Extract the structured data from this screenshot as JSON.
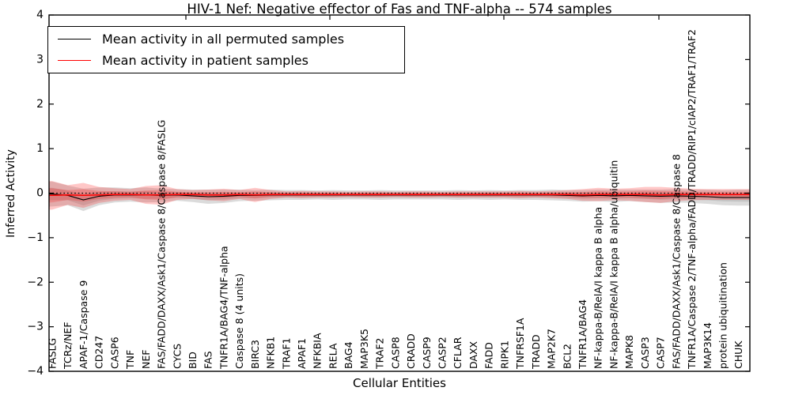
{
  "figure": {
    "title": "HIV-1 Nef: Negative effector of Fas and TNF-alpha -- 574 samples",
    "xlabel": "Cellular Entities",
    "ylabel": "Inferred Activity"
  },
  "legend": {
    "items": [
      {
        "label": "Mean activity in all permuted samples",
        "color": "#000000"
      },
      {
        "label": "Mean activity in patient samples",
        "color": "#ff0000"
      }
    ]
  },
  "chart_data": {
    "type": "line",
    "title": "HIV-1 Nef: Negative effector of Fas and TNF-alpha -- 574 samples",
    "xlabel": "Cellular Entities",
    "ylabel": "Inferred Activity",
    "ylim": [
      -4,
      4
    ],
    "ytick_labels": [
      "−4",
      "−3",
      "−2",
      "−1",
      "0",
      "1",
      "2",
      "3",
      "4"
    ],
    "yticks": [
      -4,
      -3,
      -2,
      -1,
      0,
      1,
      2,
      3,
      4
    ],
    "grid": false,
    "legend_position": "upper left",
    "x_tick_label_rotation": 90,
    "reference_line": {
      "y": 0,
      "style": "dotted",
      "color": "#000000"
    },
    "categories": [
      "FASLG",
      "TCRz/NEF",
      "APAF-1/Caspase 9",
      "CD247",
      "CASP6",
      "TNF",
      "NEF",
      "FAS/FADD/DAXX/Ask1/Caspase 8/Caspase 8/FASLG",
      "CYCS",
      "BID",
      "FAS",
      "TNFR1A/BAG4/TNF-alpha",
      "Caspase 8 (4 units)",
      "BIRC3",
      "NFKB1",
      "TRAF1",
      "APAF1",
      "NFKBIA",
      "RELA",
      "BAG4",
      "MAP3K5",
      "TRAF2",
      "CASP8",
      "CRADD",
      "CASP9",
      "CASP2",
      "CFLAR",
      "DAXX",
      "FADD",
      "RIPK1",
      "TNFRSF1A",
      "TRADD",
      "MAP2K7",
      "BCL2",
      "TNFR1A/BAG4",
      "NF-kappa-B/RelA/I kappa B alpha",
      "NF-kappa-B/RelA/I kappa B alpha/ubiquitin",
      "MAPK8",
      "CASP3",
      "CASP7",
      "FAS/FADD/DAXX/Ask1/Caspase 8/Caspase 8",
      "TNFR1A/Caspase 2/TNF-alpha/FADD/TRADD/RIP1/cIAP2/TRAF1/TRAF2",
      "MAP3K14",
      "protein ubiquitination",
      "CHUK"
    ],
    "series": [
      {
        "name": "Mean activity in all permuted samples",
        "color": "#000000",
        "band_color": "#888888",
        "band_alpha": 0.3,
        "values": [
          -0.02,
          -0.05,
          -0.15,
          -0.07,
          -0.04,
          -0.04,
          -0.04,
          -0.05,
          -0.04,
          -0.06,
          -0.08,
          -0.07,
          -0.05,
          -0.05,
          -0.04,
          -0.04,
          -0.04,
          -0.04,
          -0.04,
          -0.04,
          -0.04,
          -0.04,
          -0.04,
          -0.04,
          -0.04,
          -0.04,
          -0.04,
          -0.04,
          -0.04,
          -0.04,
          -0.04,
          -0.04,
          -0.04,
          -0.05,
          -0.06,
          -0.05,
          -0.06,
          -0.05,
          -0.06,
          -0.07,
          -0.06,
          -0.07,
          -0.08,
          -0.1,
          -0.1
        ],
        "band_halfwidth": [
          0.28,
          0.22,
          0.25,
          0.2,
          0.17,
          0.15,
          0.17,
          0.15,
          0.13,
          0.14,
          0.16,
          0.15,
          0.13,
          0.12,
          0.12,
          0.11,
          0.11,
          0.1,
          0.11,
          0.1,
          0.1,
          0.11,
          0.1,
          0.1,
          0.1,
          0.1,
          0.11,
          0.1,
          0.11,
          0.1,
          0.11,
          0.11,
          0.12,
          0.12,
          0.13,
          0.13,
          0.14,
          0.13,
          0.14,
          0.15,
          0.15,
          0.15,
          0.16,
          0.17,
          0.18
        ]
      },
      {
        "name": "Mean activity in patient samples",
        "color": "#ff0000",
        "band_color": "#ff0000",
        "band_alpha": 0.22,
        "values": [
          -0.05,
          -0.04,
          -0.05,
          -0.04,
          -0.03,
          -0.03,
          -0.04,
          -0.04,
          -0.03,
          -0.03,
          -0.04,
          -0.04,
          -0.03,
          -0.04,
          -0.03,
          -0.03,
          -0.03,
          -0.03,
          -0.03,
          -0.03,
          -0.03,
          -0.03,
          -0.03,
          -0.03,
          -0.03,
          -0.03,
          -0.03,
          -0.03,
          -0.03,
          -0.03,
          -0.03,
          -0.03,
          -0.03,
          -0.03,
          -0.04,
          -0.03,
          -0.03,
          -0.03,
          -0.03,
          -0.04,
          -0.03,
          -0.03,
          -0.03,
          -0.03,
          -0.03
        ],
        "band_halfwidth": [
          0.32,
          0.22,
          0.28,
          0.18,
          0.14,
          0.12,
          0.2,
          0.22,
          0.12,
          0.1,
          0.12,
          0.14,
          0.1,
          0.16,
          0.1,
          0.07,
          0.08,
          0.07,
          0.07,
          0.06,
          0.07,
          0.07,
          0.06,
          0.07,
          0.07,
          0.06,
          0.07,
          0.07,
          0.07,
          0.07,
          0.08,
          0.07,
          0.08,
          0.1,
          0.13,
          0.15,
          0.13,
          0.14,
          0.17,
          0.18,
          0.15,
          0.13,
          0.12,
          0.12,
          0.12
        ]
      }
    ]
  }
}
